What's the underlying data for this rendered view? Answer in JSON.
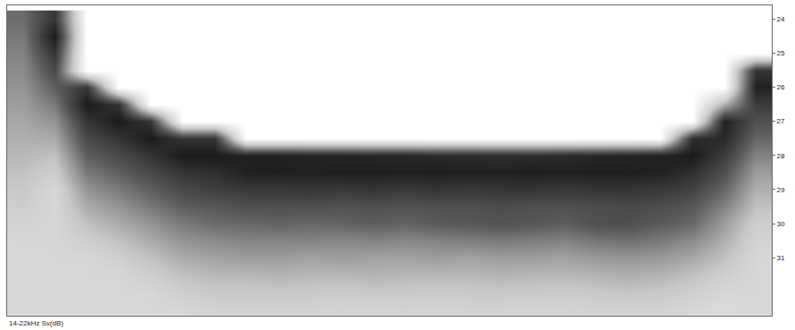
{
  "chart_data": {
    "type": "heatmap",
    "annotations": [
      {
        "text": "14-22kHz Sv(dB)"
      }
    ],
    "x": [
      0,
      1,
      2,
      3,
      4,
      5,
      6,
      7,
      8,
      9,
      10,
      11,
      12,
      13,
      14,
      15,
      16,
      17,
      18,
      19,
      20,
      21,
      22,
      23
    ],
    "y": [
      24.0,
      24.5,
      25.0,
      25.5,
      26.0,
      26.5,
      27.0,
      27.5,
      28.0,
      28.5,
      29.0,
      29.5,
      30.0,
      30.5,
      31.0,
      31.5,
      32.0,
      32.5
    ],
    "xlim": [
      -0.5,
      23.5
    ],
    "ylim": [
      23.6,
      32.7
    ],
    "yticks": [
      24,
      25,
      26,
      27,
      28,
      29,
      30,
      31
    ],
    "zlim": [
      -90,
      -20
    ],
    "grid": true,
    "tick_labels": "y",
    "z": [
      [
        -45,
        -48,
        -50,
        -52,
        -54,
        -56,
        -58,
        -60,
        -62,
        -64,
        -66,
        -68,
        -70,
        -72,
        -72,
        -72,
        -72,
        -72
      ],
      [
        -30,
        -22,
        -30,
        -36,
        -42,
        -48,
        -54,
        -59,
        -64,
        -68,
        -72,
        -72,
        -72,
        -72,
        -72,
        -72,
        -72,
        -72
      ],
      [
        -90,
        -90,
        -90,
        -90,
        -30,
        -22,
        -30,
        -36,
        -42,
        -48,
        -54,
        -59,
        -64,
        -68,
        -72,
        -72,
        -72,
        -72
      ],
      [
        -90,
        -90,
        -90,
        -90,
        -90,
        -30,
        -22,
        -30,
        -36,
        -42,
        -48,
        -54,
        -59,
        -64,
        -68,
        -72,
        -72,
        -72
      ],
      [
        -90,
        -90,
        -90,
        -90,
        -90,
        -90,
        -30,
        -22,
        -30,
        -36,
        -42,
        -48,
        -54,
        -59,
        -64,
        -68,
        -72,
        -72
      ],
      [
        -90,
        -90,
        -90,
        -90,
        -90,
        -90,
        -90,
        -30,
        -22,
        -30,
        -36,
        -42,
        -48,
        -54,
        -59,
        -64,
        -68,
        -72
      ],
      [
        -90,
        -90,
        -90,
        -90,
        -90,
        -90,
        -90,
        -30,
        -22,
        -28,
        -33,
        -40,
        -45,
        -52,
        -57,
        -62,
        -66,
        -70
      ],
      [
        -90,
        -90,
        -90,
        -90,
        -90,
        -90,
        -90,
        -90,
        -24,
        -24,
        -31,
        -38,
        -44,
        -50,
        -56,
        -62,
        -66,
        -70
      ],
      [
        -90,
        -90,
        -90,
        -90,
        -90,
        -90,
        -90,
        -90,
        -24,
        -23,
        -31,
        -38,
        -43,
        -50,
        -56,
        -61,
        -66,
        -70
      ],
      [
        -90,
        -90,
        -90,
        -90,
        -90,
        -90,
        -90,
        -90,
        -25,
        -24,
        -30,
        -38,
        -44,
        -50,
        -57,
        -62,
        -66,
        -70
      ],
      [
        -90,
        -90,
        -90,
        -90,
        -90,
        -90,
        -90,
        -90,
        -25,
        -23,
        -31,
        -39,
        -43,
        -51,
        -56,
        -62,
        -67,
        -70
      ],
      [
        -90,
        -90,
        -90,
        -90,
        -90,
        -90,
        -90,
        -90,
        -26,
        -23,
        -30,
        -38,
        -42,
        -50,
        -57,
        -61,
        -66,
        -71
      ],
      [
        -90,
        -90,
        -90,
        -90,
        -90,
        -90,
        -90,
        -90,
        -26,
        -24,
        -31,
        -39,
        -43,
        -51,
        -57,
        -62,
        -66,
        -70
      ],
      [
        -90,
        -90,
        -90,
        -90,
        -90,
        -90,
        -90,
        -90,
        -27,
        -23,
        -30,
        -38,
        -41,
        -50,
        -56,
        -62,
        -67,
        -71
      ],
      [
        -90,
        -90,
        -90,
        -90,
        -90,
        -90,
        -90,
        -90,
        -27,
        -24,
        -31,
        -38,
        -40,
        -49,
        -57,
        -62,
        -66,
        -70
      ],
      [
        -90,
        -90,
        -90,
        -90,
        -90,
        -90,
        -90,
        -90,
        -28,
        -24,
        -30,
        -37,
        -39,
        -48,
        -56,
        -61,
        -66,
        -70
      ],
      [
        -90,
        -90,
        -90,
        -90,
        -90,
        -90,
        -90,
        -90,
        -28,
        -23,
        -30,
        -38,
        -40,
        -49,
        -56,
        -62,
        -66,
        -71
      ],
      [
        -90,
        -90,
        -90,
        -90,
        -90,
        -90,
        -90,
        -90,
        -27,
        -24,
        -31,
        -38,
        -42,
        -50,
        -57,
        -62,
        -67,
        -70
      ],
      [
        -90,
        -90,
        -90,
        -90,
        -90,
        -90,
        -90,
        -90,
        -26,
        -23,
        -30,
        -37,
        -38,
        -47,
        -55,
        -61,
        -66,
        -70
      ],
      [
        -90,
        -90,
        -90,
        -90,
        -90,
        -90,
        -90,
        -90,
        -25,
        -23,
        -30,
        -36,
        -38,
        -46,
        -54,
        -60,
        -65,
        -70
      ],
      [
        -90,
        -90,
        -90,
        -90,
        -90,
        -90,
        -90,
        -90,
        -24,
        -24,
        -31,
        -37,
        -41,
        -48,
        -55,
        -61,
        -66,
        -70
      ],
      [
        -90,
        -90,
        -90,
        -90,
        -90,
        -90,
        -90,
        -28,
        -22,
        -28,
        -34,
        -40,
        -44,
        -52,
        -58,
        -64,
        -68,
        -72
      ],
      [
        -90,
        -90,
        -90,
        -90,
        -90,
        -60,
        -24,
        -26,
        -32,
        -38,
        -44,
        -50,
        -56,
        -60,
        -64,
        -68,
        -72,
        -74
      ],
      [
        -90,
        -90,
        -90,
        -30,
        -24,
        -32,
        -38,
        -44,
        -50,
        -56,
        -60,
        -64,
        -68,
        -70,
        -72,
        -72,
        -72,
        -72
      ]
    ]
  }
}
